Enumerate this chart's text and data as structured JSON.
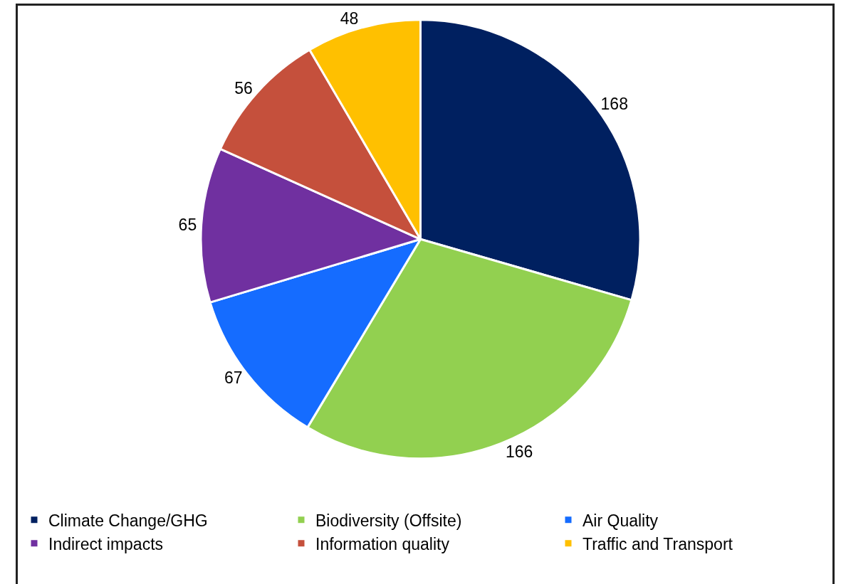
{
  "chart_data": {
    "type": "pie",
    "categories": [
      "Climate Change/GHG",
      "Biodiversity (Offsite)",
      "Air Quality",
      "Indirect impacts",
      "Information quality",
      "Traffic and Transport"
    ],
    "values": [
      168,
      166,
      67,
      65,
      56,
      48
    ],
    "colors": [
      "#002060",
      "#92d050",
      "#156cff",
      "#7030a0",
      "#c5503c",
      "#ffc000"
    ],
    "data_labels": true,
    "legend": "bottom"
  }
}
